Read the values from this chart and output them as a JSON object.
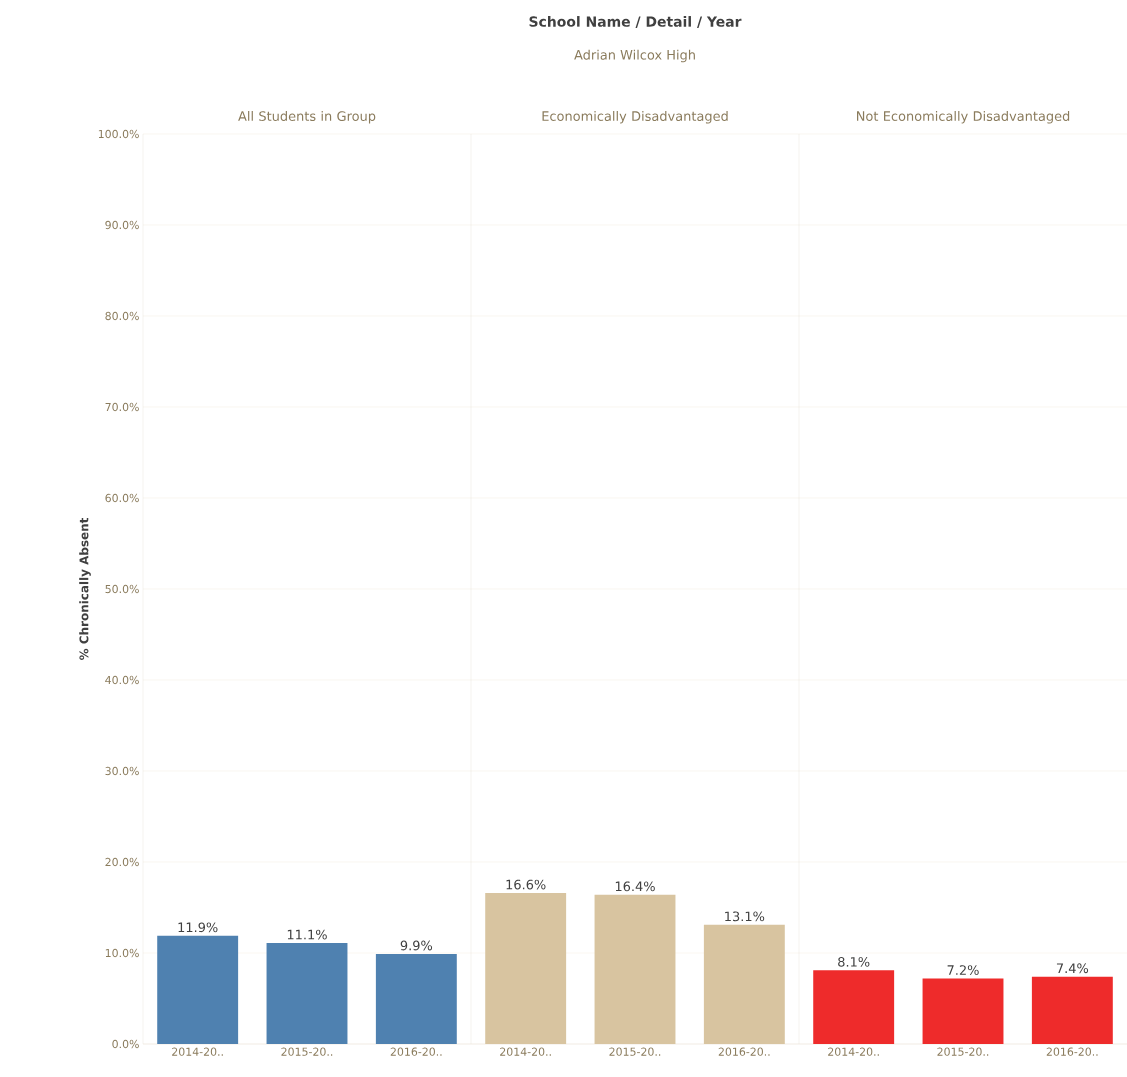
{
  "chart_data": [
    {
      "type": "bar",
      "title": "All Students in Group",
      "annotations": [
        "School Name / Detail / Year",
        "Adrian Wilcox High"
      ],
      "ylabel": "% Chronically Absent",
      "categories": [
        "2014-20..",
        "2015-20..",
        "2016-20.."
      ],
      "values": [
        11.9,
        11.1,
        9.9
      ],
      "value_labels": [
        "11.9%",
        "11.1%",
        "9.9%"
      ],
      "color": "#4f81b0",
      "ylim": [
        0,
        100
      ],
      "yticks": [
        {
          "value": 0,
          "label": "0.0%"
        },
        {
          "value": 10,
          "label": "10.0%"
        },
        {
          "value": 20,
          "label": "20.0%"
        },
        {
          "value": 30,
          "label": "30.0%"
        },
        {
          "value": 40,
          "label": "40.0%"
        },
        {
          "value": 50,
          "label": "50.0%"
        },
        {
          "value": 60,
          "label": "60.0%"
        },
        {
          "value": 70,
          "label": "70.0%"
        },
        {
          "value": 80,
          "label": "80.0%"
        },
        {
          "value": 90,
          "label": "90.0%"
        },
        {
          "value": 100,
          "label": "100.0%"
        }
      ],
      "grid": "y"
    },
    {
      "type": "bar",
      "title": "Economically Disadvantaged",
      "categories": [
        "2014-20..",
        "2015-20..",
        "2016-20.."
      ],
      "values": [
        16.6,
        16.4,
        13.1
      ],
      "value_labels": [
        "16.6%",
        "16.4%",
        "13.1%"
      ],
      "color": "#d8c4a0",
      "ylim": [
        0,
        100
      ],
      "yticks": [
        0,
        10,
        20,
        30,
        40,
        50,
        60,
        70,
        80,
        90,
        100
      ],
      "grid": "y",
      "tick_labels": "x"
    },
    {
      "type": "bar",
      "title": "Not Economically Disadvantaged",
      "categories": [
        "2014-20..",
        "2015-20..",
        "2016-20.."
      ],
      "values": [
        8.1,
        7.2,
        7.4
      ],
      "value_labels": [
        "8.1%",
        "7.2%",
        "7.4%"
      ],
      "color": "#ee2b2b",
      "ylim": [
        0,
        100
      ],
      "yticks": [
        0,
        10,
        20,
        30,
        40,
        50,
        60,
        70,
        80,
        90,
        100
      ],
      "grid": "y",
      "tick_labels": "x"
    }
  ]
}
